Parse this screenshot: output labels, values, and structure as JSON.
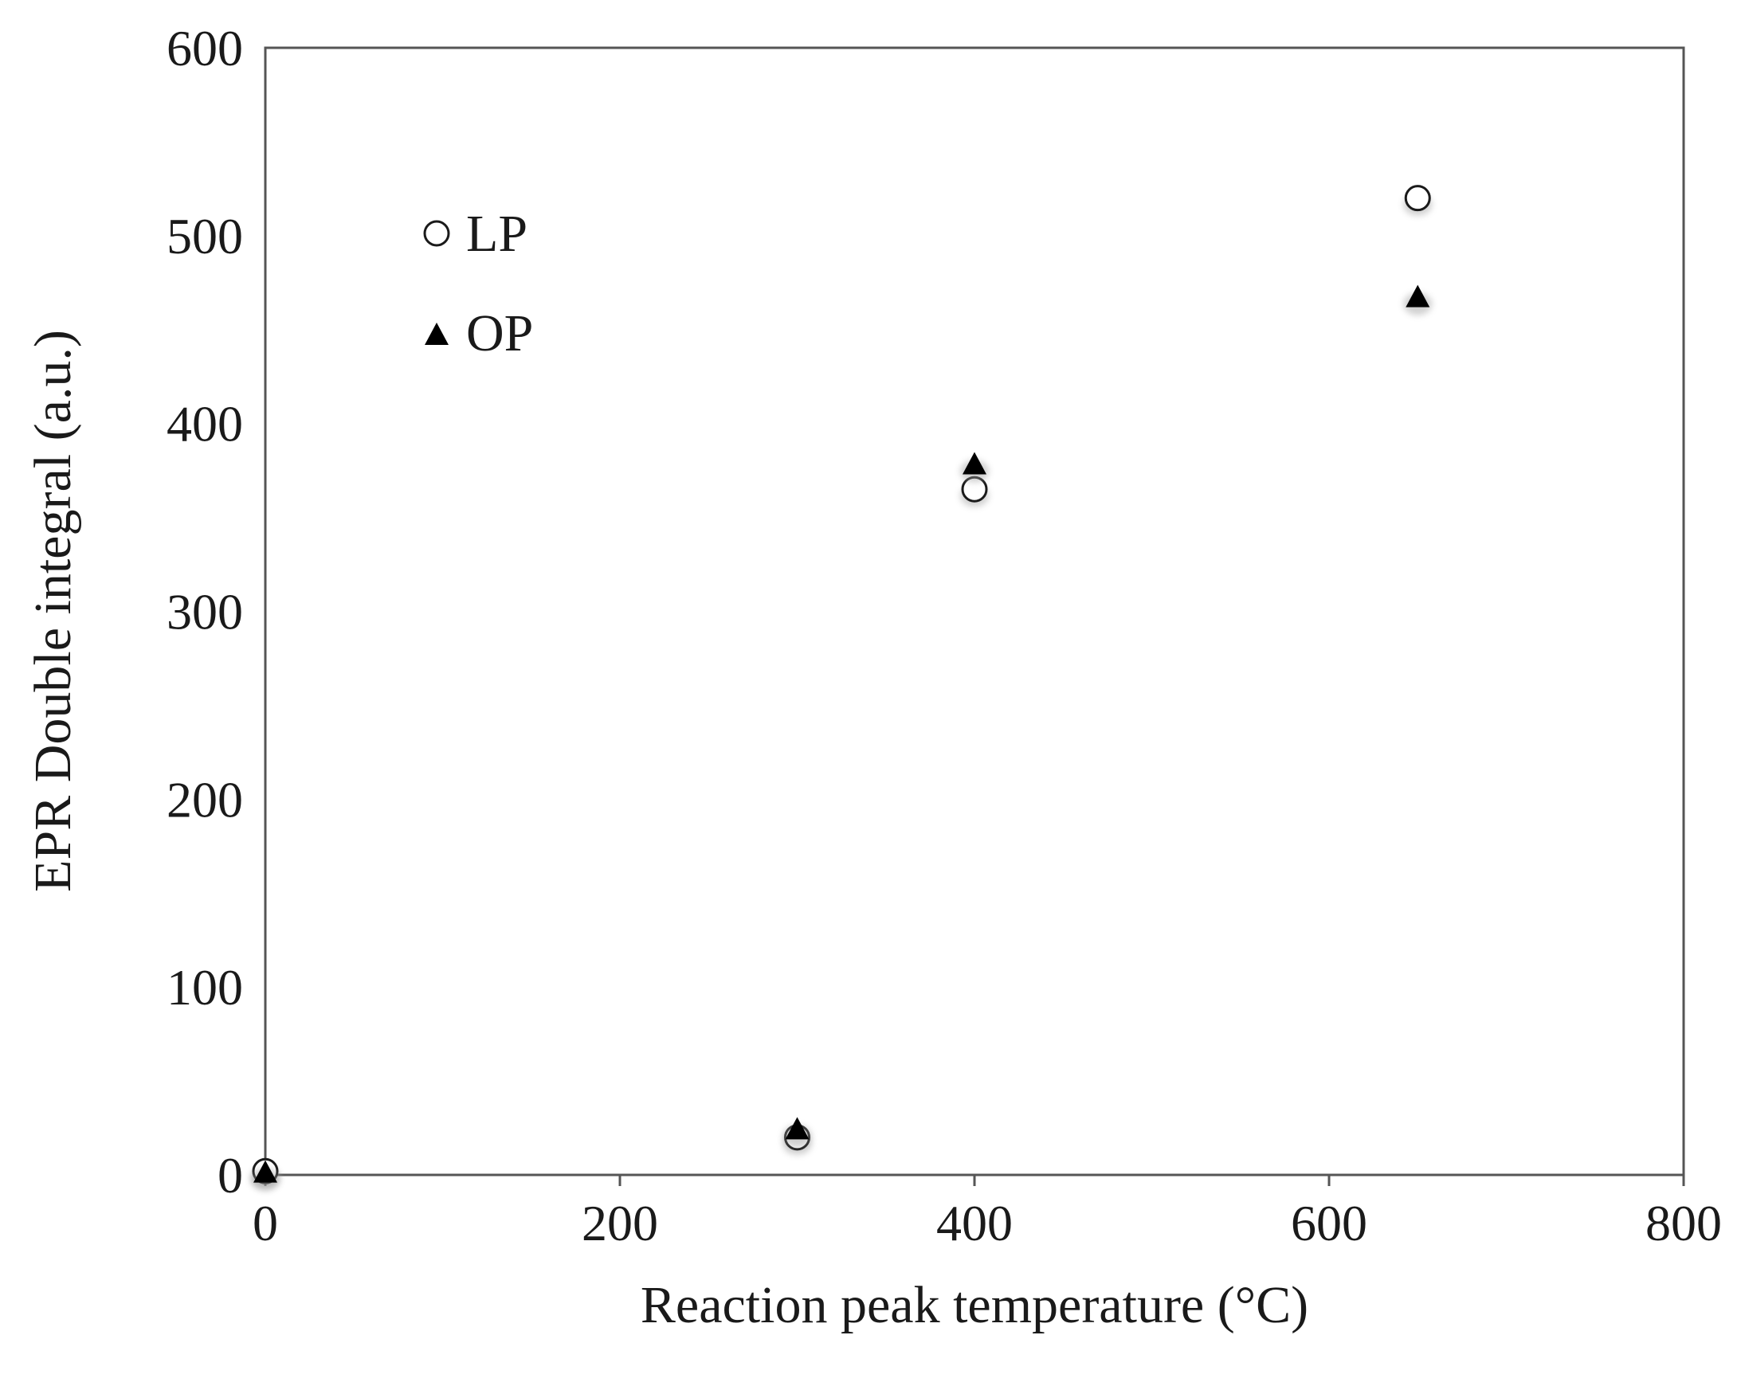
{
  "chart_data": {
    "type": "scatter",
    "title": "",
    "xlabel": "Reaction peak temperature (°C)",
    "ylabel": "EPR Double integral (a.u.)",
    "xlim": [
      0,
      800
    ],
    "ylim": [
      0,
      600
    ],
    "xticks": [
      0,
      200,
      400,
      600,
      800
    ],
    "yticks": [
      0,
      100,
      200,
      300,
      400,
      500,
      600
    ],
    "xtick_labels": [
      "0",
      "200",
      "400",
      "600",
      "800"
    ],
    "ytick_labels": [
      "0",
      "100",
      "200",
      "300",
      "400",
      "500",
      "600"
    ],
    "grid": false,
    "legend_position": "top-left",
    "series": [
      {
        "name": "LP",
        "marker": "open-circle",
        "color": "#ffffff",
        "stroke": "#1a1a1a",
        "x": [
          0,
          300,
          400,
          650
        ],
        "y": [
          2,
          20,
          365,
          520
        ]
      },
      {
        "name": "OP",
        "marker": "filled-triangle",
        "color": "#000000",
        "stroke": "#000000",
        "x": [
          0,
          300,
          400,
          650
        ],
        "y": [
          1,
          24,
          378,
          467
        ]
      }
    ]
  }
}
